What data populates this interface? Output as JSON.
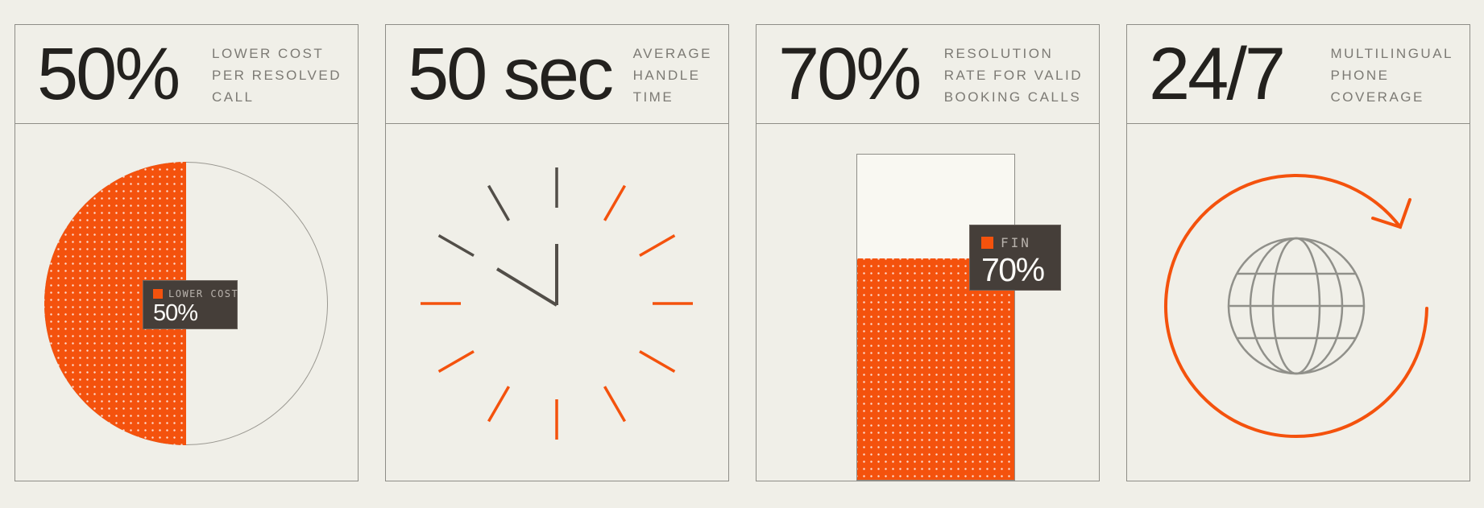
{
  "colors": {
    "background": "#F0EFE8",
    "card_border": "#8E8D87",
    "accent_orange": "#F4520D",
    "ink": "#23211E",
    "label_gray": "#7C7A74",
    "tooltip_bg": "#453E39",
    "tooltip_label": "#B8B2AC",
    "tooltip_value": "#FBFAF7",
    "illustration_gray": "#524E48",
    "globe_gray": "#90908A"
  },
  "cards": [
    {
      "stat": "50%",
      "label": "LOWER COST\nPER RESOLVED\nCALL",
      "tooltip": {
        "label": "LOWER COST",
        "value": "50%"
      }
    },
    {
      "stat": "50 sec",
      "label": "AVERAGE\nHANDLE\nTIME"
    },
    {
      "stat": "70%",
      "label": "RESOLUTION\nRATE FOR VALID\nBOOKING CALLS",
      "tooltip": {
        "label": "FIN",
        "value": "70%"
      }
    },
    {
      "stat": "24/7",
      "label": "MULTILINGUAL\nPHONE\nCOVERAGE"
    }
  ],
  "chart_data": [
    {
      "type": "pie",
      "title": "LOWER COST PER RESOLVED CALL",
      "slices": [
        {
          "label": "LOWER COST",
          "value": 50,
          "color": "#F4520D",
          "pattern": "white-dots"
        },
        {
          "label": "remainder",
          "value": 50,
          "color": "transparent"
        }
      ],
      "legend_position": "center-overlay-tooltip"
    },
    {
      "type": "clock-illustration",
      "title": "AVERAGE HANDLE TIME",
      "stat_value": 50,
      "stat_unit": "sec",
      "time_shown": "10:00",
      "dark_tick_hours": [
        10,
        11,
        12
      ],
      "orange_tick_hours": [
        1,
        2,
        3,
        4,
        5,
        6,
        7,
        8,
        9
      ]
    },
    {
      "type": "bar",
      "title": "RESOLUTION RATE FOR VALID BOOKING CALLS",
      "categories": [
        "FIN"
      ],
      "values": [
        70
      ],
      "ylim": [
        0,
        100
      ],
      "bar_pattern": "white-dots-on-orange"
    },
    {
      "type": "globe-illustration",
      "title": "MULTILINGUAL PHONE COVERAGE",
      "stat": "24/7",
      "arrow_direction": "clockwise"
    }
  ]
}
